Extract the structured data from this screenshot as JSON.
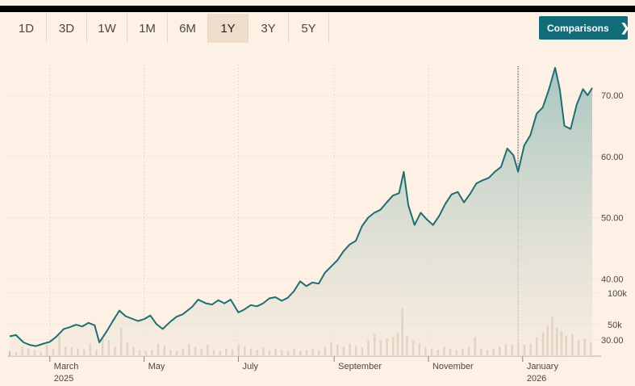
{
  "ranges": [
    {
      "label": "1D",
      "active": false
    },
    {
      "label": "3D",
      "active": false
    },
    {
      "label": "1W",
      "active": false
    },
    {
      "label": "1M",
      "active": false
    },
    {
      "label": "6M",
      "active": false
    },
    {
      "label": "1Y",
      "active": true
    },
    {
      "label": "3Y",
      "active": false
    },
    {
      "label": "5Y",
      "active": false
    }
  ],
  "comparisons_label": "Comparisons",
  "comparisons_icon": "chevron-right-icon",
  "colors": {
    "line": "#1f6e73",
    "fill_top": "#a8c6c0",
    "fill_bottom": "#f6e9dc",
    "volume": "#c8b2a0",
    "accent_button": "#116c78"
  },
  "chart_data": {
    "type": "line",
    "title": "",
    "xlabel": "",
    "ylabel": "",
    "price_axis": {
      "min": 25,
      "max": 75,
      "ticks": [
        "30.00",
        "40.00",
        "50.00",
        "60.00",
        "70.00"
      ],
      "position": "right"
    },
    "volume_axis": {
      "ticks": [
        "50k",
        "100k"
      ],
      "position": "right"
    },
    "x_ticks": [
      {
        "label": "March",
        "sub": "2025",
        "date": "2025-03-01"
      },
      {
        "label": "May",
        "sub": "",
        "date": "2025-05-01"
      },
      {
        "label": "July",
        "sub": "",
        "date": "2025-07-01"
      },
      {
        "label": "September",
        "sub": "",
        "date": "2025-09-01"
      },
      {
        "label": "November",
        "sub": "",
        "date": "2025-11-01"
      },
      {
        "label": "January",
        "sub": "2026",
        "date": "2026-01-01"
      }
    ],
    "grid": true,
    "series": [
      {
        "points": [
          [
            "2025-02-03",
            30.6
          ],
          [
            "2025-02-07",
            30.8
          ],
          [
            "2025-02-12",
            29.6
          ],
          [
            "2025-02-16",
            29.2
          ],
          [
            "2025-02-20",
            29.0
          ],
          [
            "2025-02-25",
            29.4
          ],
          [
            "2025-03-01",
            29.7
          ],
          [
            "2025-03-05",
            30.5
          ],
          [
            "2025-03-10",
            31.8
          ],
          [
            "2025-03-14",
            32.1
          ],
          [
            "2025-03-18",
            32.5
          ],
          [
            "2025-03-22",
            32.2
          ],
          [
            "2025-03-26",
            32.8
          ],
          [
            "2025-03-30",
            32.4
          ],
          [
            "2025-04-02",
            29.6
          ],
          [
            "2025-04-07",
            31.5
          ],
          [
            "2025-04-11",
            33.2
          ],
          [
            "2025-04-15",
            34.8
          ],
          [
            "2025-04-19",
            33.9
          ],
          [
            "2025-04-23",
            33.5
          ],
          [
            "2025-04-27",
            33.1
          ],
          [
            "2025-05-01",
            33.4
          ],
          [
            "2025-05-05",
            34.0
          ],
          [
            "2025-05-09",
            32.6
          ],
          [
            "2025-05-13",
            31.8
          ],
          [
            "2025-05-18",
            33.0
          ],
          [
            "2025-05-22",
            33.8
          ],
          [
            "2025-05-26",
            34.2
          ],
          [
            "2025-06-01",
            35.4
          ],
          [
            "2025-06-05",
            36.6
          ],
          [
            "2025-06-10",
            36.0
          ],
          [
            "2025-06-14",
            35.8
          ],
          [
            "2025-06-18",
            36.5
          ],
          [
            "2025-06-22",
            36.0
          ],
          [
            "2025-06-26",
            36.6
          ],
          [
            "2025-07-01",
            34.5
          ],
          [
            "2025-07-05",
            35.0
          ],
          [
            "2025-07-09",
            35.7
          ],
          [
            "2025-07-13",
            35.5
          ],
          [
            "2025-07-17",
            36.0
          ],
          [
            "2025-07-21",
            36.8
          ],
          [
            "2025-07-25",
            37.0
          ],
          [
            "2025-07-29",
            36.4
          ],
          [
            "2025-08-02",
            36.9
          ],
          [
            "2025-08-06",
            38.0
          ],
          [
            "2025-08-10",
            39.6
          ],
          [
            "2025-08-14",
            38.8
          ],
          [
            "2025-08-18",
            39.4
          ],
          [
            "2025-08-22",
            39.2
          ],
          [
            "2025-08-26",
            41.0
          ],
          [
            "2025-08-30",
            42.0
          ],
          [
            "2025-09-03",
            43.0
          ],
          [
            "2025-09-07",
            44.5
          ],
          [
            "2025-09-11",
            45.6
          ],
          [
            "2025-09-15",
            46.2
          ],
          [
            "2025-09-19",
            48.6
          ],
          [
            "2025-09-23",
            50.0
          ],
          [
            "2025-09-27",
            50.8
          ],
          [
            "2025-10-01",
            51.3
          ],
          [
            "2025-10-05",
            52.5
          ],
          [
            "2025-10-09",
            53.6
          ],
          [
            "2025-10-13",
            54.0
          ],
          [
            "2025-10-16",
            57.5
          ],
          [
            "2025-10-19",
            52.0
          ],
          [
            "2025-10-23",
            48.8
          ],
          [
            "2025-10-27",
            50.8
          ],
          [
            "2025-10-31",
            49.7
          ],
          [
            "2025-11-04",
            48.8
          ],
          [
            "2025-11-08",
            50.3
          ],
          [
            "2025-11-12",
            52.3
          ],
          [
            "2025-11-16",
            53.8
          ],
          [
            "2025-11-20",
            54.2
          ],
          [
            "2025-11-24",
            52.5
          ],
          [
            "2025-11-28",
            53.9
          ],
          [
            "2025-12-02",
            55.6
          ],
          [
            "2025-12-06",
            56.1
          ],
          [
            "2025-12-10",
            56.5
          ],
          [
            "2025-12-14",
            57.5
          ],
          [
            "2025-12-18",
            58.3
          ],
          [
            "2025-12-22",
            61.3
          ],
          [
            "2025-12-26",
            60.2
          ],
          [
            "2025-12-29",
            57.5
          ],
          [
            "2026-01-02",
            61.8
          ],
          [
            "2026-01-06",
            63.5
          ],
          [
            "2026-01-10",
            67.0
          ],
          [
            "2026-01-14",
            68.0
          ],
          [
            "2026-01-18",
            71.0
          ],
          [
            "2026-01-22",
            74.5
          ],
          [
            "2026-01-25",
            71.0
          ],
          [
            "2026-01-28",
            65.0
          ],
          [
            "2026-02-01",
            64.5
          ],
          [
            "2026-02-05",
            68.5
          ],
          [
            "2026-02-09",
            71.0
          ],
          [
            "2026-02-12",
            70.0
          ],
          [
            "2026-02-15",
            71.2
          ]
        ]
      }
    ],
    "volume": [
      [
        "2025-02-03",
        8
      ],
      [
        "2025-02-07",
        6
      ],
      [
        "2025-02-11",
        15
      ],
      [
        "2025-02-15",
        12
      ],
      [
        "2025-02-19",
        10
      ],
      [
        "2025-02-23",
        7
      ],
      [
        "2025-02-27",
        18
      ],
      [
        "2025-03-03",
        11
      ],
      [
        "2025-03-07",
        33
      ],
      [
        "2025-03-11",
        15
      ],
      [
        "2025-03-15",
        14
      ],
      [
        "2025-03-19",
        12
      ],
      [
        "2025-03-23",
        10
      ],
      [
        "2025-03-27",
        20
      ],
      [
        "2025-03-31",
        10
      ],
      [
        "2025-04-04",
        28
      ],
      [
        "2025-04-08",
        25
      ],
      [
        "2025-04-12",
        15
      ],
      [
        "2025-04-16",
        45
      ],
      [
        "2025-04-20",
        22
      ],
      [
        "2025-04-24",
        15
      ],
      [
        "2025-04-28",
        10
      ],
      [
        "2025-05-02",
        8
      ],
      [
        "2025-05-06",
        10
      ],
      [
        "2025-05-10",
        20
      ],
      [
        "2025-05-14",
        16
      ],
      [
        "2025-05-18",
        10
      ],
      [
        "2025-05-22",
        8
      ],
      [
        "2025-05-26",
        12
      ],
      [
        "2025-05-30",
        20
      ],
      [
        "2025-06-03",
        15
      ],
      [
        "2025-06-07",
        12
      ],
      [
        "2025-06-11",
        18
      ],
      [
        "2025-06-15",
        10
      ],
      [
        "2025-06-19",
        8
      ],
      [
        "2025-06-23",
        12
      ],
      [
        "2025-06-27",
        10
      ],
      [
        "2025-07-01",
        18
      ],
      [
        "2025-07-05",
        16
      ],
      [
        "2025-07-09",
        12
      ],
      [
        "2025-07-13",
        10
      ],
      [
        "2025-07-17",
        14
      ],
      [
        "2025-07-21",
        9
      ],
      [
        "2025-07-25",
        12
      ],
      [
        "2025-07-29",
        10
      ],
      [
        "2025-08-02",
        8
      ],
      [
        "2025-08-06",
        12
      ],
      [
        "2025-08-10",
        8
      ],
      [
        "2025-08-14",
        10
      ],
      [
        "2025-08-18",
        11
      ],
      [
        "2025-08-22",
        9
      ],
      [
        "2025-08-26",
        15
      ],
      [
        "2025-08-30",
        22
      ],
      [
        "2025-09-03",
        18
      ],
      [
        "2025-09-07",
        15
      ],
      [
        "2025-09-11",
        20
      ],
      [
        "2025-09-15",
        16
      ],
      [
        "2025-09-19",
        14
      ],
      [
        "2025-09-23",
        25
      ],
      [
        "2025-09-27",
        35
      ],
      [
        "2025-10-01",
        25
      ],
      [
        "2025-10-05",
        28
      ],
      [
        "2025-10-09",
        30
      ],
      [
        "2025-10-12",
        38
      ],
      [
        "2025-10-15",
        75
      ],
      [
        "2025-10-18",
        32
      ],
      [
        "2025-10-22",
        25
      ],
      [
        "2025-10-26",
        20
      ],
      [
        "2025-10-30",
        15
      ],
      [
        "2025-11-03",
        12
      ],
      [
        "2025-11-07",
        10
      ],
      [
        "2025-11-11",
        15
      ],
      [
        "2025-11-15",
        12
      ],
      [
        "2025-11-19",
        10
      ],
      [
        "2025-11-23",
        12
      ],
      [
        "2025-11-27",
        15
      ],
      [
        "2025-12-01",
        30
      ],
      [
        "2025-12-05",
        12
      ],
      [
        "2025-12-09",
        10
      ],
      [
        "2025-12-13",
        12
      ],
      [
        "2025-12-17",
        15
      ],
      [
        "2025-12-21",
        20
      ],
      [
        "2025-12-25",
        18
      ],
      [
        "2025-12-29",
        22
      ],
      [
        "2026-01-02",
        18
      ],
      [
        "2026-01-06",
        20
      ],
      [
        "2026-01-10",
        30
      ],
      [
        "2026-01-14",
        38
      ],
      [
        "2026-01-17",
        48
      ],
      [
        "2026-01-20",
        62
      ],
      [
        "2026-01-23",
        45
      ],
      [
        "2026-01-26",
        40
      ],
      [
        "2026-01-29",
        32
      ],
      [
        "2026-02-02",
        35
      ],
      [
        "2026-02-06",
        25
      ],
      [
        "2026-02-10",
        28
      ],
      [
        "2026-02-14",
        22
      ]
    ],
    "volume_max": 110
  }
}
